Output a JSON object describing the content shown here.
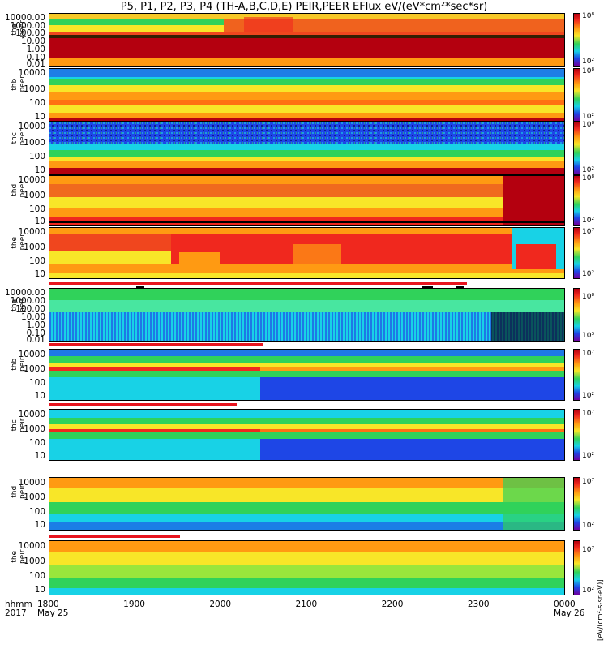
{
  "title": "P5, P1, P2, P3, P4 (TH-A,B,C,D,E) PEIR,PEER EFlux eV/(eV*cm²*sec*sr)",
  "colorbar_title": "[eV/(cm²-s-sr-eV)]",
  "colors": {
    "dark_red": "#b4000f",
    "red": "#f0281e",
    "orange": "#ff9a12",
    "yellow": "#f8e628",
    "green": "#30d25a",
    "cyan": "#18d2e6",
    "blue": "#1e46e6",
    "purple": "#7000a0",
    "flag_red": "#e8141e"
  },
  "x_axis": {
    "label_line1": "hhmm",
    "label_line2": "2017",
    "ticks": [
      {
        "t": "1800",
        "sub": "May 25"
      },
      {
        "t": "1900",
        "sub": ""
      },
      {
        "t": "2000",
        "sub": ""
      },
      {
        "t": "2100",
        "sub": ""
      },
      {
        "t": "2200",
        "sub": ""
      },
      {
        "t": "2300",
        "sub": ""
      },
      {
        "t": "0000",
        "sub": "May 26"
      }
    ]
  },
  "chart_data": {
    "type": "heatmap",
    "x_range": [
      "2017-05-25 18:00",
      "2017-05-26 00:00"
    ],
    "panels": [
      {
        "id": "tha-peer",
        "line1": "tha",
        "line2": "peer",
        "ylog": true,
        "yticks": [
          "10000.00",
          "1000.00",
          "100.00",
          "10.00",
          "1.00",
          "0.10",
          "0.01"
        ],
        "cbar": [
          "10⁸",
          "10⁷",
          "10⁶",
          "10⁵",
          "10⁴",
          "10³",
          "10²"
        ]
      },
      {
        "id": "thb-peer",
        "line1": "thb",
        "line2": "peer",
        "ylog": true,
        "yticks": [
          "10000",
          "1000",
          "100",
          "10"
        ],
        "cbar": [
          "10⁸",
          "10⁷",
          "10⁶",
          "10⁵",
          "10⁴",
          "10³",
          "10²"
        ]
      },
      {
        "id": "thc-peer",
        "line1": "thc",
        "line2": "peer",
        "ylog": true,
        "yticks": [
          "10000",
          "1000",
          "100",
          "10"
        ],
        "cbar": [
          "10⁸",
          "10⁷",
          "10⁶",
          "10⁵",
          "10⁴",
          "10³",
          "10²"
        ]
      },
      {
        "id": "thd-peer",
        "line1": "thd",
        "line2": "peer",
        "ylog": true,
        "yticks": [
          "10000",
          "1000",
          "100",
          "10"
        ],
        "cbar": [
          "10⁸",
          "10⁷",
          "10⁶",
          "10⁵",
          "10⁴",
          "10³",
          "10²"
        ]
      },
      {
        "id": "the-peer",
        "line1": "the",
        "line2": "peer",
        "ylog": true,
        "yticks": [
          "10000",
          "1000",
          "100",
          "10"
        ],
        "cbar": [
          "10⁷",
          "10⁶",
          "10⁵",
          "10⁴",
          "10³",
          "10²"
        ]
      },
      {
        "id": "tha-peir",
        "line1": "tha",
        "line2": "peir",
        "ylog": true,
        "yticks": [
          "10000.00",
          "1000.00",
          "100.00",
          "10.00",
          "1.00",
          "0.10",
          "0.01"
        ],
        "cbar": [
          "10⁸",
          "10⁷",
          "10⁶",
          "10⁵",
          "10⁴",
          "10³"
        ]
      },
      {
        "id": "thb-peir",
        "line1": "thb",
        "line2": "peir",
        "ylog": true,
        "yticks": [
          "10000",
          "1000",
          "100",
          "10"
        ],
        "cbar": [
          "10⁷",
          "10⁶",
          "10⁵",
          "10⁴",
          "10³",
          "10²"
        ]
      },
      {
        "id": "thc-peir",
        "line1": "thc",
        "line2": "peir",
        "ylog": true,
        "yticks": [
          "10000",
          "1000",
          "100",
          "10"
        ],
        "cbar": [
          "10⁷",
          "10⁶",
          "10⁵",
          "10⁴",
          "10³",
          "10²"
        ]
      },
      {
        "id": "thd-peir",
        "line1": "thd",
        "line2": "peir",
        "ylog": true,
        "yticks": [
          "10000",
          "1000",
          "100",
          "10"
        ],
        "cbar": [
          "10⁷",
          "10⁶",
          "10⁵",
          "10⁴",
          "10³",
          "10²"
        ]
      },
      {
        "id": "the-peir",
        "line1": "the",
        "line2": "peir",
        "ylog": true,
        "yticks": [
          "10000",
          "1000",
          "100",
          "10"
        ],
        "cbar": [
          "10⁷",
          "10⁶",
          "10⁵",
          "10⁴",
          "10³",
          "10²"
        ]
      }
    ]
  }
}
